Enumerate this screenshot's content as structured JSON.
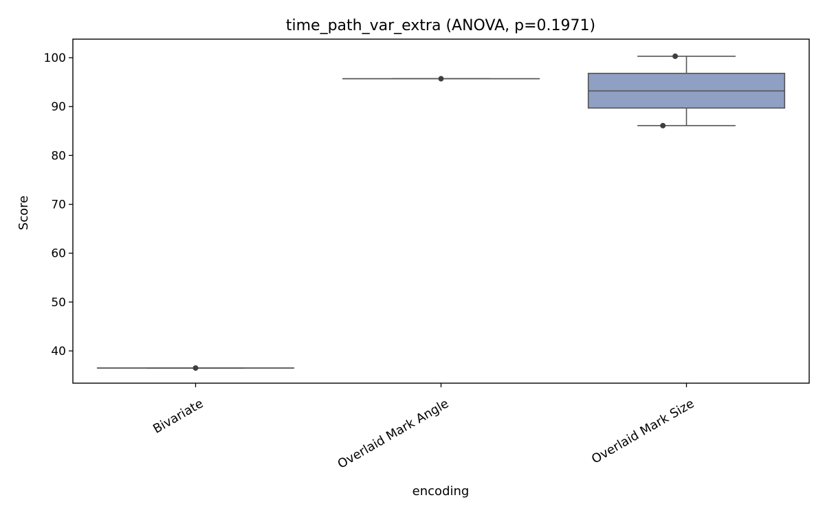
{
  "chart_data": {
    "type": "box",
    "title": "time_path_var_extra (ANOVA, p=0.1971)",
    "xlabel": "encoding",
    "ylabel": "Score",
    "ylim": [
      33.4,
      103.8
    ],
    "yticks": [
      40,
      50,
      60,
      70,
      80,
      90,
      100
    ],
    "grid": false,
    "box_color": "#8fa0c4",
    "line_color": "#555555",
    "point_color": "#3f3f3f",
    "categories": [
      "Bivariate",
      "Overlaid Mark Angle",
      "Overlaid Mark Size"
    ],
    "boxes": [
      {
        "category": "Bivariate",
        "min": 36.5,
        "q1": 36.5,
        "median": 36.5,
        "q3": 36.5,
        "max": 36.5,
        "points": [
          36.5
        ]
      },
      {
        "category": "Overlaid Mark Angle",
        "min": 95.7,
        "q1": 95.7,
        "median": 95.7,
        "q3": 95.7,
        "max": 95.7,
        "points": [
          95.7
        ]
      },
      {
        "category": "Overlaid Mark Size",
        "min": 86.1,
        "q1": 89.7,
        "median": 93.2,
        "q3": 96.8,
        "max": 100.3,
        "points": [
          86.1,
          100.3
        ]
      }
    ]
  }
}
